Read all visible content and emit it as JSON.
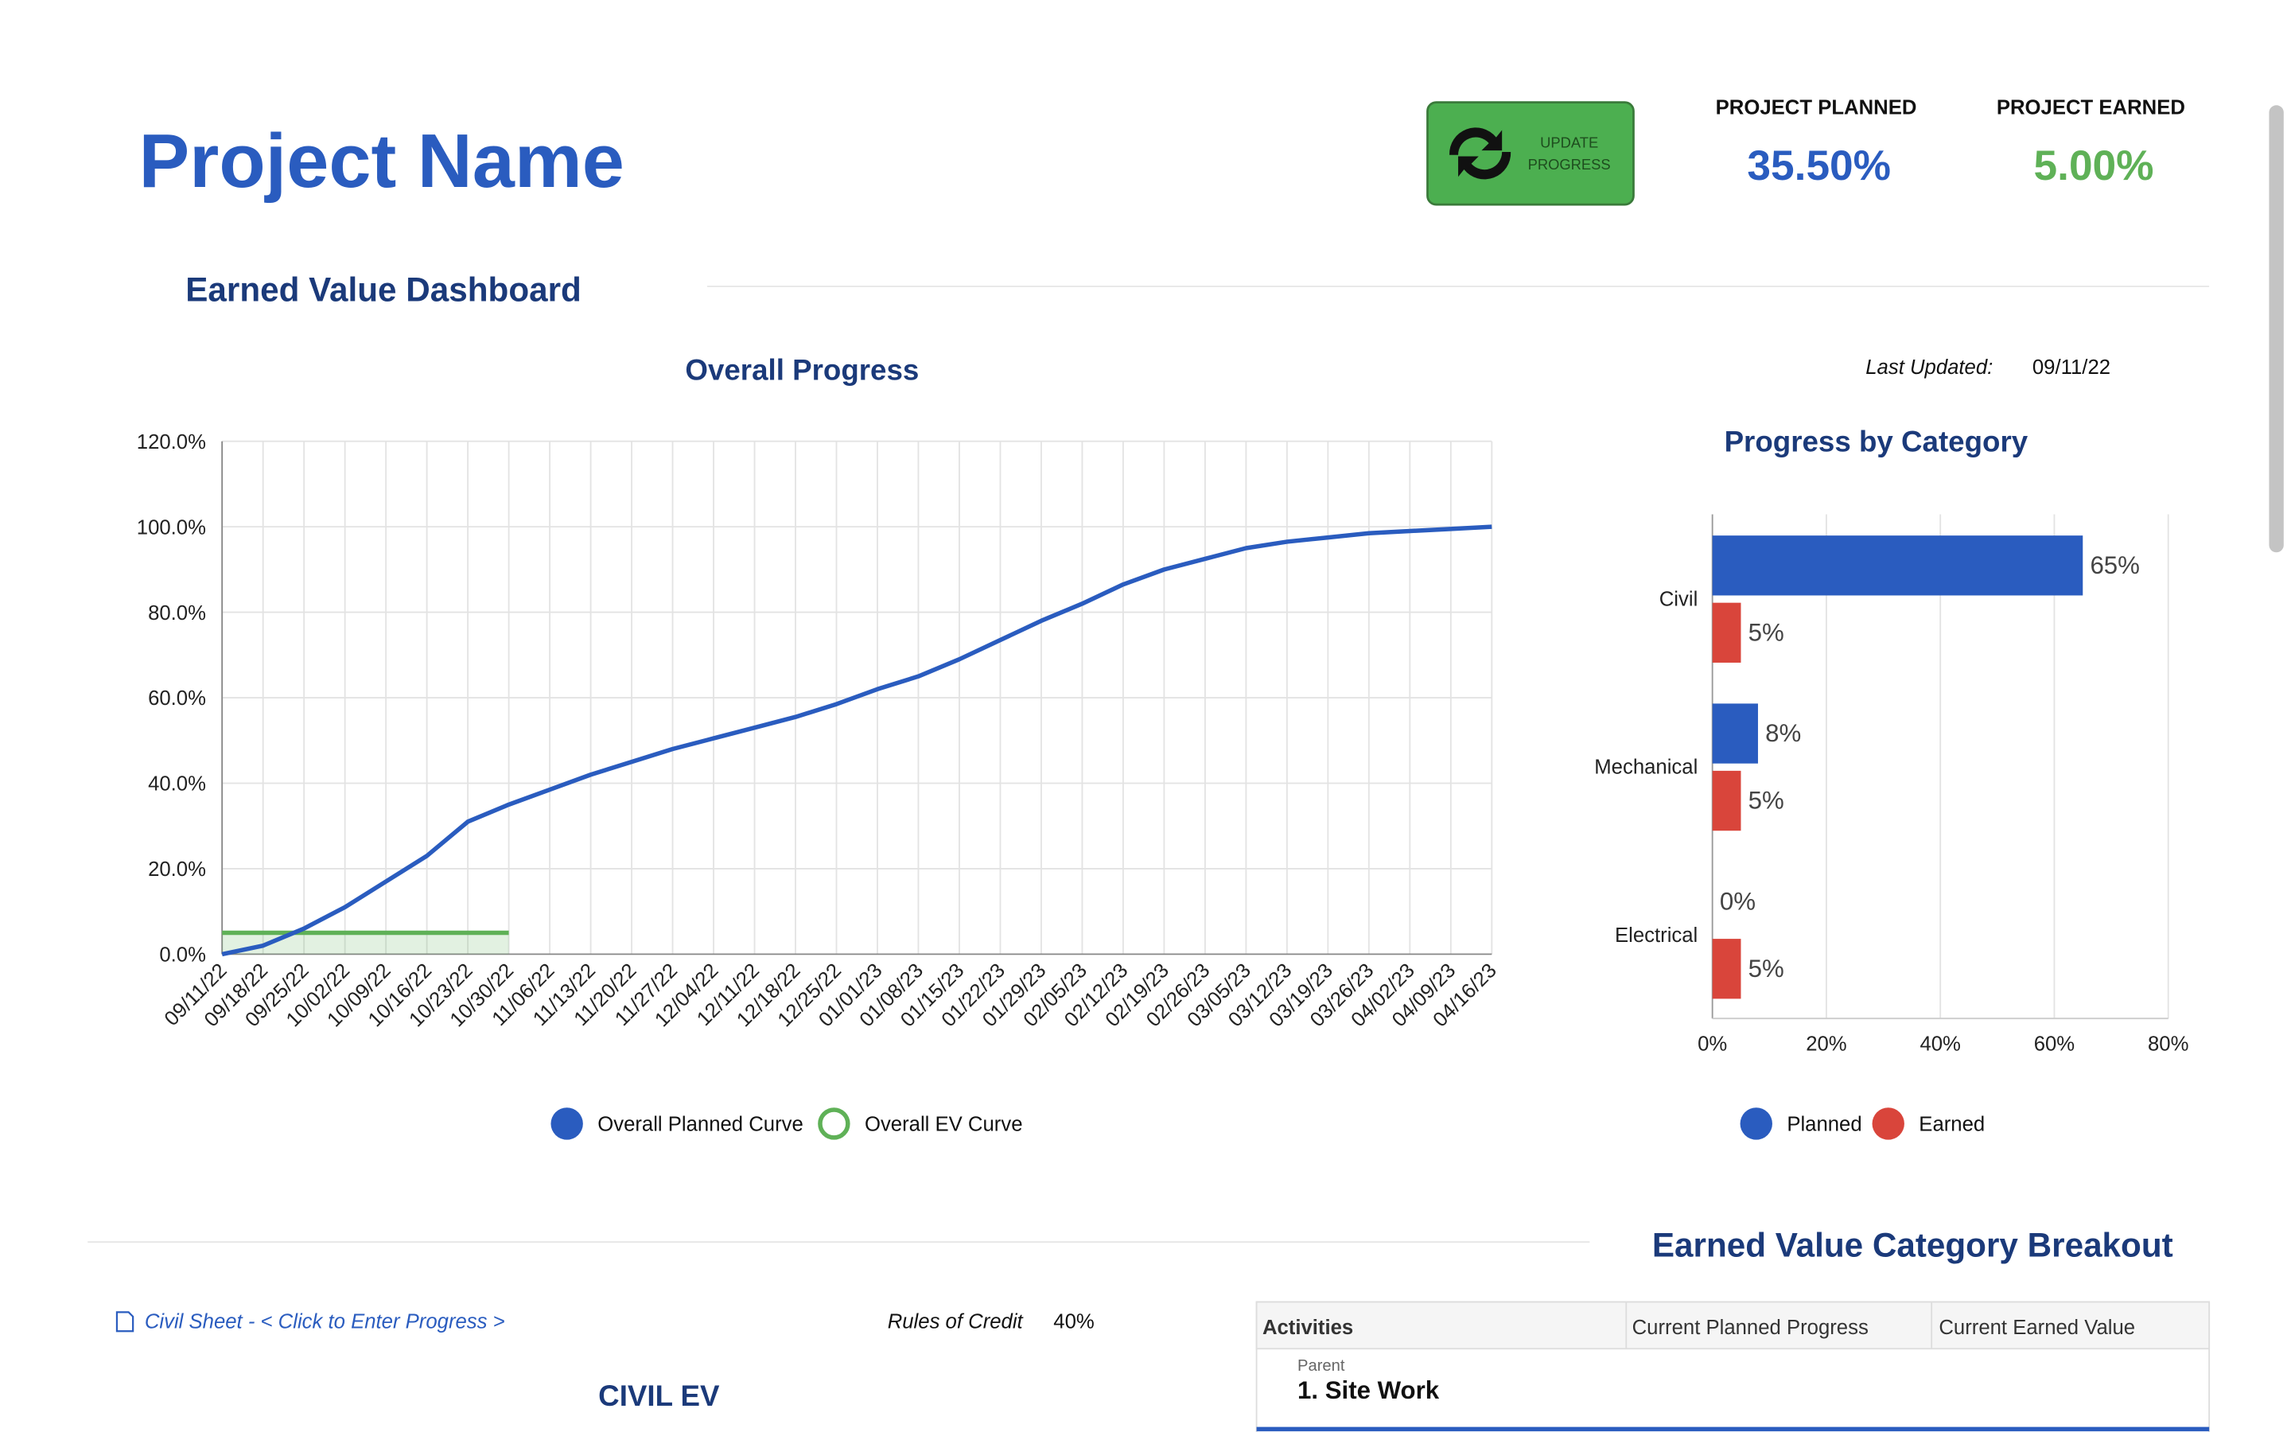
{
  "header": {
    "title": "Project Name",
    "subtitle": "Earned Value Dashboard"
  },
  "button": {
    "lines": [
      "UPDATE",
      "PROGRESS"
    ]
  },
  "kpis": [
    {
      "label": "PROJECT PLANNED",
      "value": "35.50%"
    },
    {
      "label": "PROJECT EARNED",
      "value": "5.00%"
    }
  ],
  "last_updated": {
    "label": "Last Updated:",
    "value": "09/11/22"
  },
  "chart_data": [
    {
      "type": "line",
      "title": "Overall Progress",
      "categories": [
        "09/11/22",
        "09/18/22",
        "09/25/22",
        "10/02/22",
        "10/09/22",
        "10/16/22",
        "10/23/22",
        "10/30/22",
        "11/06/22",
        "11/13/22",
        "11/20/22",
        "11/27/22",
        "12/04/22",
        "12/11/22",
        "12/18/22",
        "12/25/22",
        "01/01/23",
        "01/08/23",
        "01/15/23",
        "01/22/23",
        "01/29/23",
        "02/05/23",
        "02/12/23",
        "02/19/23",
        "02/26/23",
        "03/05/23",
        "03/12/23",
        "03/19/23",
        "03/26/23",
        "04/02/23",
        "04/09/23",
        "04/16/23"
      ],
      "series": [
        {
          "name": "Overall Planned Curve",
          "color": "#2a5cbf",
          "values": [
            0,
            2,
            6,
            11,
            17,
            23,
            31,
            35,
            38.5,
            42,
            45,
            48,
            50.5,
            53,
            55.5,
            58.5,
            62,
            65,
            69,
            73.5,
            78,
            82,
            86.5,
            90,
            92.5,
            95,
            96.5,
            97.5,
            98.5,
            99,
            99.5,
            100
          ]
        },
        {
          "name": "Overall EV Curve",
          "color": "#5fb157",
          "values": [
            5,
            5,
            5,
            5,
            5,
            5,
            5,
            5,
            null,
            null,
            null,
            null,
            null,
            null,
            null,
            null,
            null,
            null,
            null,
            null,
            null,
            null,
            null,
            null,
            null,
            null,
            null,
            null,
            null,
            null,
            null,
            null
          ]
        }
      ],
      "ylim": [
        0,
        120
      ],
      "yticks": [
        {
          "value": 0,
          "label": "0.0%"
        },
        {
          "value": 20,
          "label": "20.0%"
        },
        {
          "value": 40,
          "label": "40.0%"
        },
        {
          "value": 60,
          "label": "60.0%"
        },
        {
          "value": 80,
          "label": "80.0%"
        },
        {
          "value": 100,
          "label": "100.0%"
        },
        {
          "value": 120,
          "label": "120.0%"
        }
      ],
      "grid": true
    },
    {
      "type": "hbar",
      "title": "Progress by Category",
      "categories": [
        "Civil",
        "Mechanical",
        "Electrical"
      ],
      "series": [
        {
          "name": "Planned",
          "color": "#2a5cbf",
          "values": [
            65,
            8,
            0
          ],
          "value_labels": [
            "65%",
            "8%",
            "0%"
          ]
        },
        {
          "name": "Earned",
          "color": "#d9453b",
          "values": [
            5,
            5,
            5
          ],
          "value_labels": [
            "5%",
            "5%",
            "5%"
          ]
        }
      ],
      "xlim": [
        0,
        80
      ],
      "xticks": [
        {
          "value": 0,
          "label": "0%"
        },
        {
          "value": 20,
          "label": "20%"
        },
        {
          "value": 40,
          "label": "40%"
        },
        {
          "value": 60,
          "label": "60%"
        },
        {
          "value": 80,
          "label": "80%"
        }
      ],
      "grid": true
    }
  ],
  "breakout": {
    "title": "Earned Value Category Breakout"
  },
  "civil": {
    "link": "Civil Sheet - < Click to Enter Progress >",
    "rules_label": "Rules of Credit",
    "rules_value": "40%",
    "title": "CIVIL EV"
  },
  "table": {
    "headers": [
      "Activities",
      "Current Planned Progress",
      "Current Earned Value"
    ],
    "rows": [
      {
        "group": "Parent",
        "name": "1. Site Work"
      }
    ]
  }
}
